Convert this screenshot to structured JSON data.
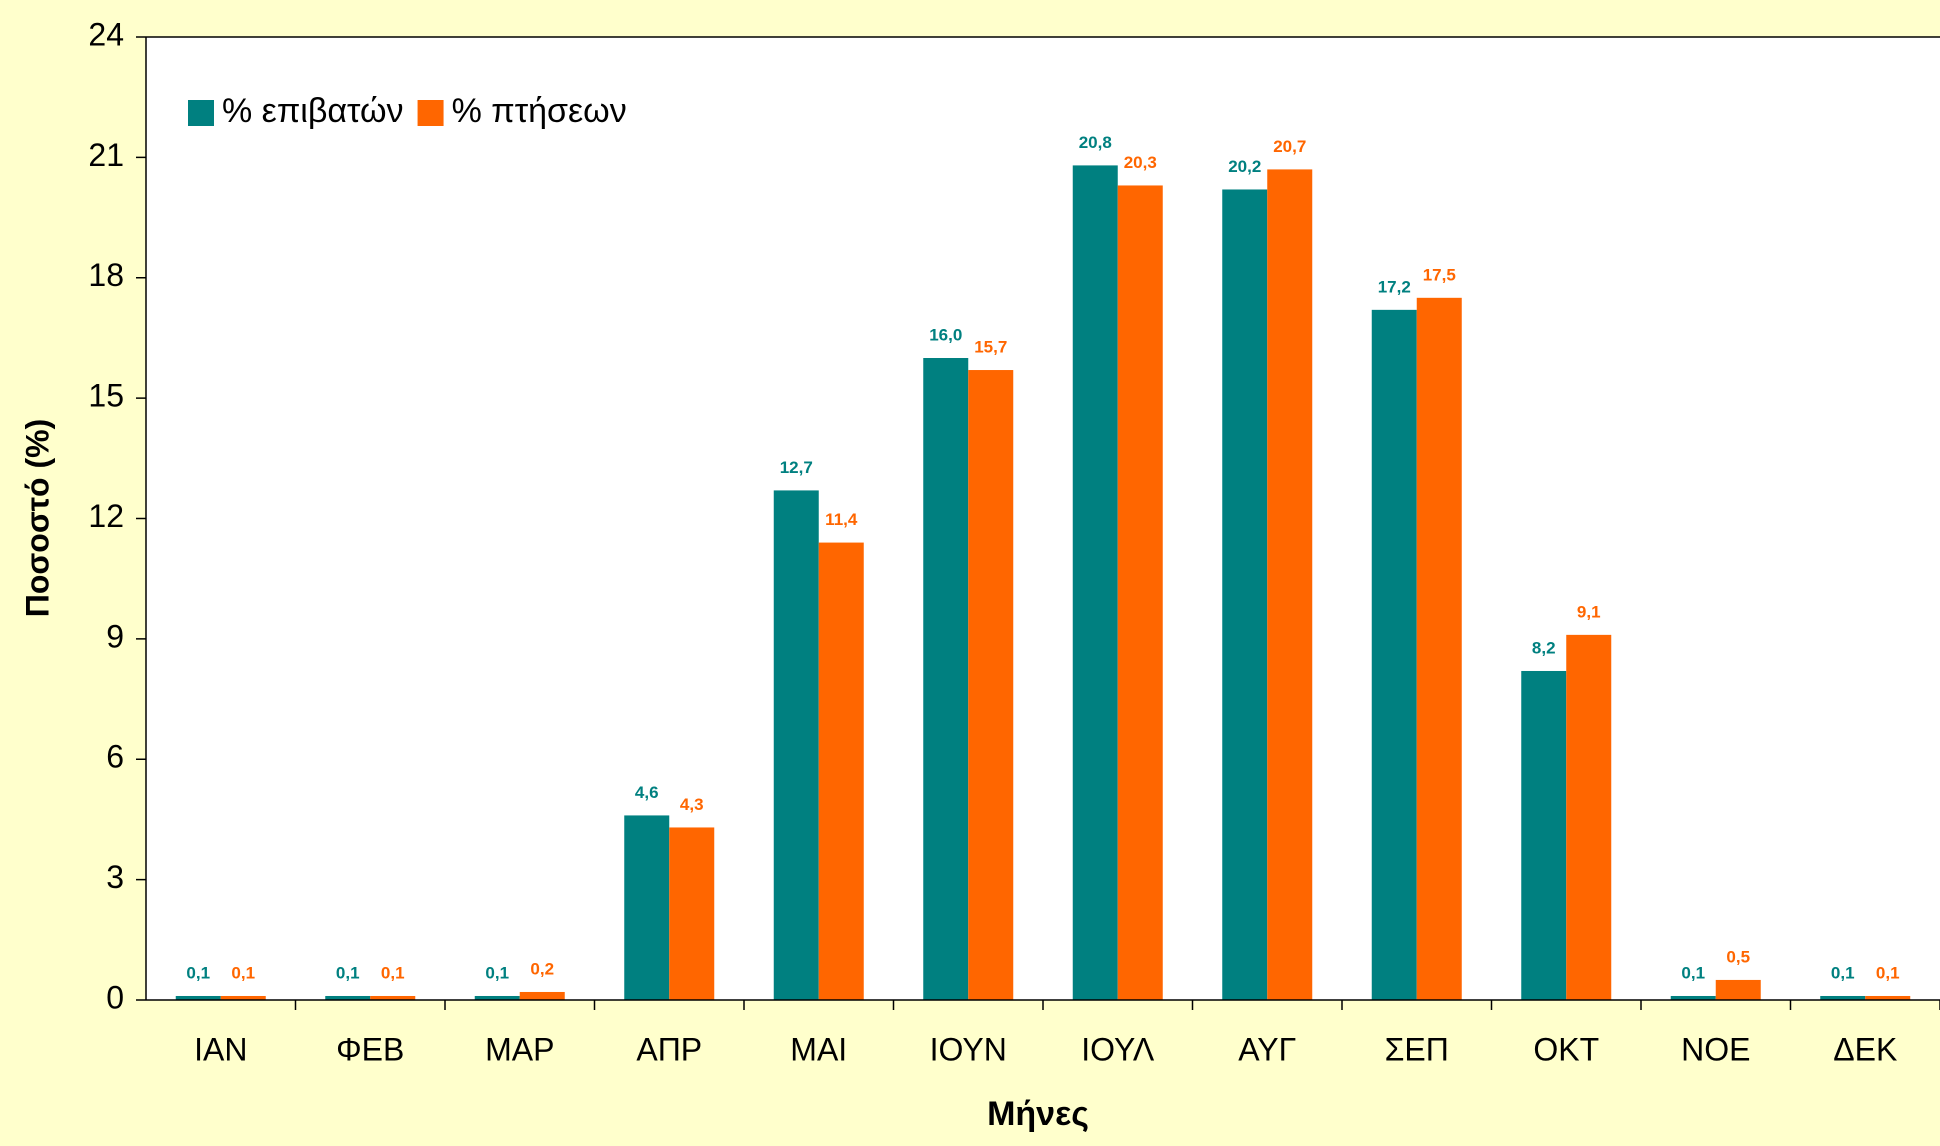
{
  "chart_data": {
    "type": "bar",
    "x_label": "Μήνες",
    "y_label": "Ποσοστό (%)",
    "categories": [
      "ΙΑΝ",
      "ΦΕΒ",
      "ΜΑΡ",
      "ΑΠΡ",
      "ΜΑΙ",
      "ΙΟΥΝ",
      "ΙΟΥΛ",
      "ΑΥΓ",
      "ΣΕΠ",
      "ΟΚΤ",
      "ΝΟΕ",
      "ΔΕΚ"
    ],
    "series": [
      {
        "name": "% επιβατών",
        "color": "#008080",
        "values": [
          0.1,
          0.1,
          0.1,
          4.6,
          12.7,
          16.0,
          20.8,
          20.2,
          17.2,
          8.2,
          0.1,
          0.1
        ],
        "value_labels": [
          "0,1",
          "0,1",
          "0,1",
          "4,6",
          "12,7",
          "16,0",
          "20,8",
          "20,2",
          "17,2",
          "8,2",
          "0,1",
          "0,1"
        ]
      },
      {
        "name": "% πτήσεων",
        "color": "#FF6600",
        "values": [
          0.1,
          0.1,
          0.2,
          4.3,
          11.4,
          15.7,
          20.3,
          20.7,
          17.5,
          9.1,
          0.5,
          0.1
        ],
        "value_labels": [
          "0,1",
          "0,1",
          "0,2",
          "4,3",
          "11,4",
          "15,7",
          "20,3",
          "20,7",
          "17,5",
          "9,1",
          "0,5",
          "0,1"
        ]
      }
    ],
    "ylim": [
      0,
      24
    ],
    "yticks": [
      0,
      3,
      6,
      9,
      12,
      15,
      18,
      21,
      24
    ],
    "grid": false,
    "legend": "top-left"
  }
}
